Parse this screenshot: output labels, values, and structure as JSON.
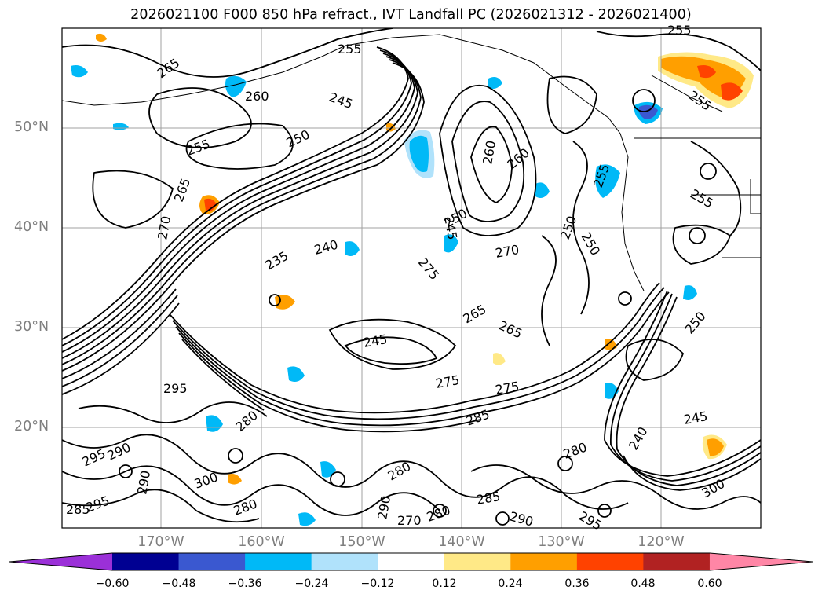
{
  "title": "2026021100 F000 850 hPa refract., IVT Landfall PC (2026021312 - 2026021400)",
  "lat_labels": [
    "50°N",
    "40°N",
    "30°N",
    "20°N"
  ],
  "lon_labels": [
    "170°W",
    "160°W",
    "150°W",
    "140°W",
    "130°W",
    "120°W"
  ],
  "contour_labels": [
    "265",
    "255",
    "260",
    "245",
    "255",
    "250",
    "265",
    "255",
    "260",
    "255",
    "260",
    "245",
    "250",
    "250",
    "270",
    "235",
    "240",
    "275",
    "270",
    "250",
    "255",
    "265",
    "265",
    "245",
    "275",
    "275",
    "285",
    "295",
    "280",
    "290",
    "295",
    "300",
    "290",
    "285",
    "295",
    "280",
    "290",
    "285",
    "270",
    "280",
    "300",
    "290",
    "295",
    "245",
    "240",
    "280",
    "250",
    "255",
    "280"
  ],
  "colorbar": {
    "ticks": [
      "−0.60",
      "−0.48",
      "−0.36",
      "−0.24",
      "−0.12",
      "0.12",
      "0.24",
      "0.36",
      "0.48",
      "0.60"
    ],
    "colors": [
      "#9b30d8",
      "#000092",
      "#3a58d0",
      "#00b9f7",
      "#b0e2fb",
      "#ffffff",
      "#ffe987",
      "#ff9f00",
      "#ff4200",
      "#b12222",
      "#ff86a6"
    ]
  }
}
